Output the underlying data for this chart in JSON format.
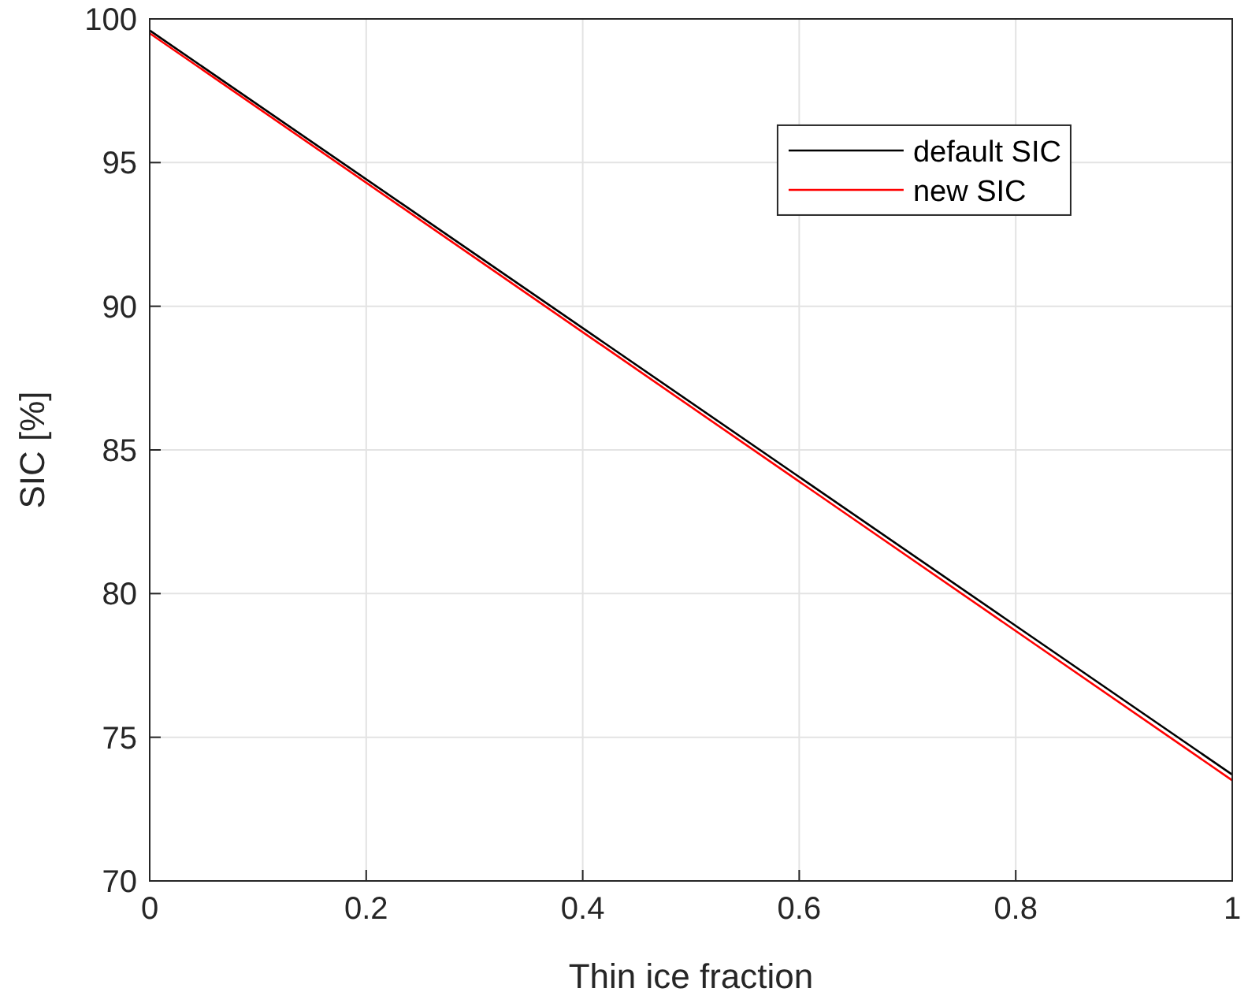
{
  "chart_data": {
    "type": "line",
    "xlabel": "Thin ice fraction",
    "ylabel": "SIC [%]",
    "x": [
      0,
      1
    ],
    "series": [
      {
        "name": "default SIC",
        "color": "#000000",
        "values": [
          99.6,
          73.7
        ]
      },
      {
        "name": "new SIC",
        "color": "#ff0000",
        "values": [
          99.5,
          73.5
        ]
      }
    ],
    "xlim": [
      0,
      1
    ],
    "xticks": [
      0,
      0.2,
      0.4,
      0.6,
      0.8,
      1
    ],
    "ylim": [
      70,
      100
    ],
    "yticks": [
      70,
      75,
      80,
      85,
      90,
      95,
      100
    ],
    "grid": true,
    "legend": "top right",
    "line_style": "solid",
    "marker": "none"
  }
}
